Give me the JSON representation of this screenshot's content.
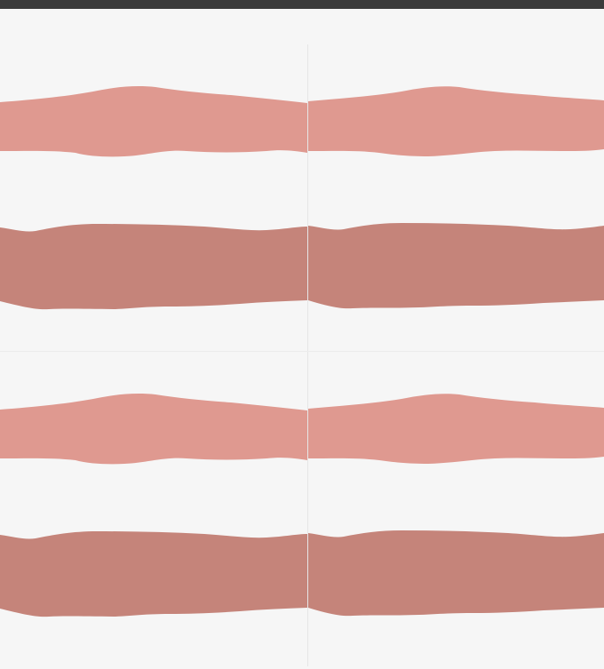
{
  "colors": {
    "topbar": "#3b3b3b",
    "background": "#f6f6f6",
    "light_band": "#df9990",
    "dark_band": "#c5847a",
    "divider": "#e6e6e6"
  },
  "pattern": {
    "tiles": [
      "tile-1",
      "tile-2",
      "tile-3",
      "tile-4"
    ]
  }
}
